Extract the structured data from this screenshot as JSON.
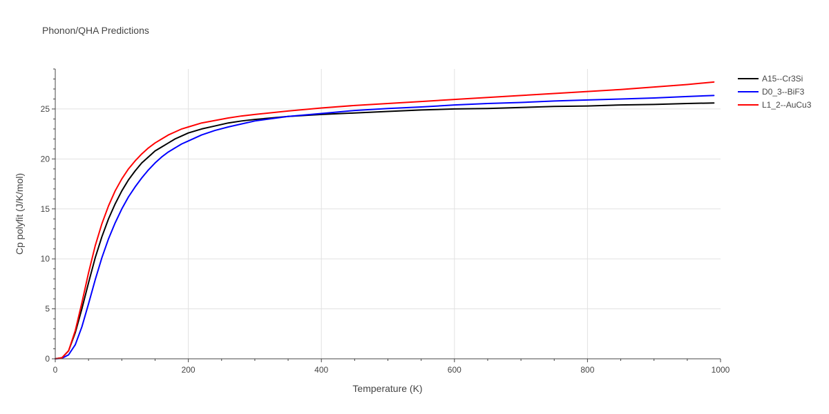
{
  "chart_data": {
    "type": "line",
    "title": "Phonon/QHA Predictions",
    "xlabel": "Temperature (K)",
    "ylabel": "Cp polyfit (J/K/mol)",
    "xlim": [
      0,
      1000
    ],
    "ylim": [
      0,
      29
    ],
    "xticks": [
      0,
      200,
      400,
      600,
      800,
      1000
    ],
    "xtick_labels": [
      "0",
      "200",
      "400",
      "600",
      "800",
      "1000"
    ],
    "yticks": [
      0,
      5,
      10,
      15,
      20,
      25
    ],
    "ytick_labels": [
      "0",
      "5",
      "10",
      "15",
      "20",
      "25"
    ],
    "grid": true,
    "legend_position": "top-right",
    "series": [
      {
        "name": "A15--Cr3Si",
        "color": "#000000",
        "x": [
          0,
          10,
          20,
          30,
          40,
          50,
          60,
          70,
          80,
          90,
          100,
          110,
          120,
          130,
          140,
          150,
          160,
          170,
          180,
          190,
          200,
          220,
          240,
          260,
          280,
          300,
          350,
          400,
          450,
          500,
          550,
          600,
          650,
          700,
          750,
          800,
          850,
          900,
          950,
          990
        ],
        "y": [
          0,
          0.1,
          0.8,
          2.6,
          5.0,
          7.6,
          10.1,
          12.2,
          14.0,
          15.5,
          16.8,
          17.9,
          18.8,
          19.6,
          20.2,
          20.8,
          21.2,
          21.6,
          22.0,
          22.3,
          22.6,
          23.0,
          23.3,
          23.6,
          23.8,
          23.95,
          24.25,
          24.45,
          24.6,
          24.75,
          24.9,
          25.0,
          25.05,
          25.15,
          25.25,
          25.3,
          25.4,
          25.45,
          25.55,
          25.6
        ]
      },
      {
        "name": "D0_3--BiF3",
        "color": "#0000ff",
        "x": [
          0,
          10,
          20,
          30,
          40,
          50,
          60,
          70,
          80,
          90,
          100,
          110,
          120,
          130,
          140,
          150,
          160,
          170,
          180,
          190,
          200,
          220,
          240,
          260,
          280,
          300,
          350,
          400,
          450,
          500,
          550,
          600,
          650,
          700,
          750,
          800,
          850,
          900,
          950,
          990
        ],
        "y": [
          0,
          0.05,
          0.4,
          1.4,
          3.2,
          5.5,
          7.9,
          10.1,
          12.0,
          13.6,
          15.0,
          16.2,
          17.2,
          18.1,
          18.9,
          19.6,
          20.2,
          20.7,
          21.1,
          21.5,
          21.8,
          22.4,
          22.85,
          23.2,
          23.5,
          23.8,
          24.25,
          24.55,
          24.85,
          25.05,
          25.2,
          25.4,
          25.55,
          25.65,
          25.8,
          25.9,
          26.0,
          26.1,
          26.25,
          26.35
        ]
      },
      {
        "name": "L1_2--AuCu3",
        "color": "#ff0000",
        "x": [
          0,
          10,
          20,
          30,
          40,
          50,
          60,
          70,
          80,
          90,
          100,
          110,
          120,
          130,
          140,
          150,
          160,
          170,
          180,
          190,
          200,
          220,
          240,
          260,
          280,
          300,
          350,
          400,
          450,
          500,
          550,
          600,
          650,
          700,
          750,
          800,
          850,
          900,
          950,
          990
        ],
        "y": [
          0,
          0.1,
          0.8,
          2.8,
          5.6,
          8.6,
          11.3,
          13.5,
          15.3,
          16.8,
          18.0,
          19.0,
          19.8,
          20.5,
          21.1,
          21.6,
          22.0,
          22.4,
          22.7,
          23.0,
          23.2,
          23.6,
          23.85,
          24.1,
          24.3,
          24.45,
          24.8,
          25.1,
          25.35,
          25.55,
          25.75,
          25.95,
          26.15,
          26.35,
          26.55,
          26.75,
          26.95,
          27.2,
          27.45,
          27.7
        ]
      }
    ]
  }
}
